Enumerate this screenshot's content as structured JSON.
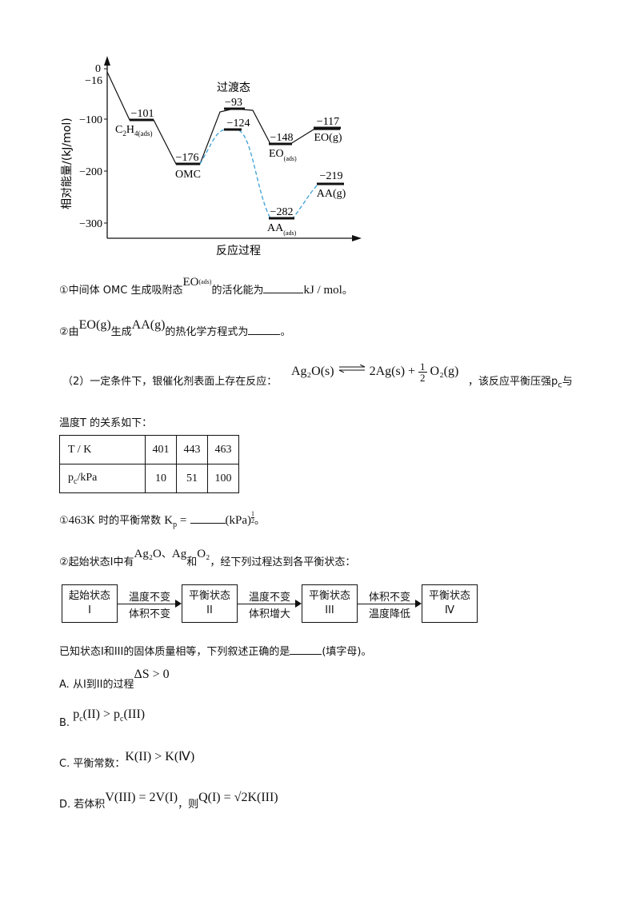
{
  "diagram": {
    "y_axis_label": "相对能量/(kJ/mol)",
    "x_axis_label": "反应过程",
    "y_ticks": [
      "0",
      "−16",
      "−100",
      "−200",
      "−300"
    ],
    "transition_label": "过渡态",
    "levels": [
      {
        "value": "−101",
        "species": "C₂H₄(ads)"
      },
      {
        "value": "−176",
        "species": "OMC"
      },
      {
        "value": "−93",
        "species": ""
      },
      {
        "value": "−124",
        "species": ""
      },
      {
        "value": "−148",
        "species": "EO(ads)"
      },
      {
        "value": "−117",
        "species": "EO(g)"
      },
      {
        "value": "−282",
        "species": "AA(ads)"
      },
      {
        "value": "−219",
        "species": "AA(g)"
      }
    ],
    "colors": {
      "main_path": "#111111",
      "dashed_path": "#3aa0d8"
    }
  },
  "q1": {
    "prefix": "①中间体 OMC 生成吸附态",
    "species": "EO",
    "species_sub": "(ads)",
    "mid": "的活化能为",
    "unit": "kJ / mol",
    "end": "。"
  },
  "q2": {
    "prefix": "②由",
    "reactant": "EO(g)",
    "mid": "生成",
    "product": "AA(g)",
    "suffix": "的热化学方程式为",
    "end": "。"
  },
  "part2": {
    "intro": "（2）一定条件下，银催化剂表面上存在反应：",
    "equation_left": "Ag₂O(s)",
    "equation_right_a": "2Ag(s) +",
    "equation_frac_num": "1",
    "equation_frac_den": "2",
    "equation_right_b": "O₂(g)",
    "tail": "，该反应平衡压强p",
    "tail_sub": "c",
    "tail_end": "与",
    "line2": "温度T 的关系如下："
  },
  "table": {
    "row1": [
      "T / K",
      "401",
      "443",
      "463"
    ],
    "row2_label": "p",
    "row2_label_sub": "c",
    "row2_label_unit": "/kPa",
    "row2": [
      "10",
      "51",
      "100"
    ]
  },
  "q3": {
    "prefix": "①",
    "temp": "463K",
    "mid": "时的平衡常数",
    "K": "K",
    "K_sub": "p",
    "eq": "=",
    "unit": "(kPa)",
    "exp_num": "1",
    "exp_den": "2",
    "end": "。"
  },
  "q4": {
    "prefix": "②起始状态I中有",
    "s1": "Ag₂O",
    "sep": "、",
    "s2": "Ag",
    "and": "和",
    "s3": "O₂",
    "suffix": "，经下列过程达到各平衡状态："
  },
  "flow": {
    "boxes": [
      {
        "line1": "起始状态",
        "line2": "I"
      },
      {
        "line1": "平衡状态",
        "line2": "II"
      },
      {
        "line1": "平衡状态",
        "line2": "III"
      },
      {
        "line1": "平衡状态",
        "line2": "Ⅳ"
      }
    ],
    "arrows": [
      {
        "top": "温度不变",
        "bottom": "体积不变"
      },
      {
        "top": "温度不变",
        "bottom": "体积增大"
      },
      {
        "top": "体积不变",
        "bottom": "温度降低"
      }
    ]
  },
  "q5": {
    "text": "已知状态I和III的固体质量相等，下列叙述正确的是",
    "end": "(填字母)。"
  },
  "options": {
    "A_label": "A.",
    "A_text": "从I到II的过程",
    "A_math": "ΔS > 0",
    "B_label": "B.",
    "B_math_1": "p",
    "B_sub_1": "c",
    "B_math_2": "(II) > p",
    "B_sub_2": "c",
    "B_math_3": "(III)",
    "C_label": "C.",
    "C_text": "平衡常数：",
    "C_math": "K(II) > K(Ⅳ)",
    "D_label": "D.",
    "D_text": "若体积",
    "D_math_1": "V(III) = 2V(I)",
    "D_mid": "，则",
    "D_math_2": "Q(I) = √2K(III)"
  }
}
